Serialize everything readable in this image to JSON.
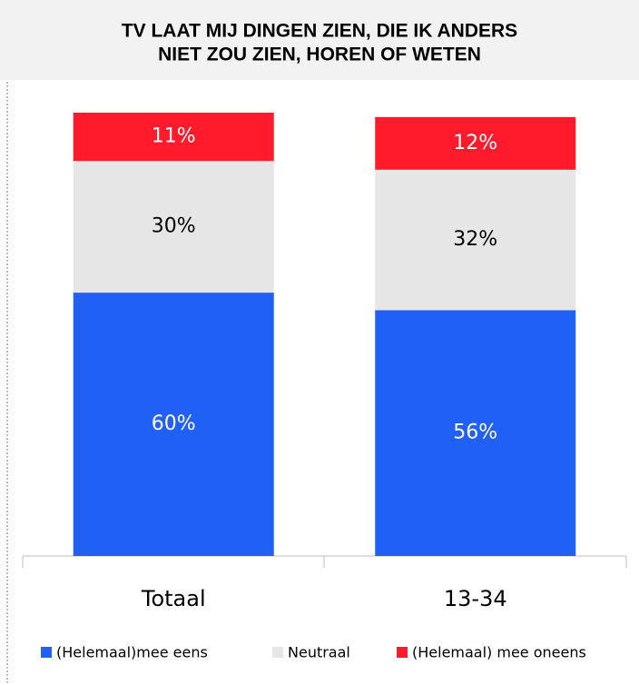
{
  "chart_data": {
    "type": "stacked_bar",
    "title": [
      "TV LAAT MIJ DINGEN ZIEN, DIE IK ANDERS",
      "NIET ZOU ZIEN, HOREN OF WETEN"
    ],
    "categories": [
      "Totaal",
      "13-34"
    ],
    "series": [
      {
        "name": "(Helemaal)mee eens",
        "color": "#2160f4",
        "values": [
          60,
          56
        ],
        "value_labels": [
          "60%",
          "56%"
        ],
        "label_color": "#ffffff"
      },
      {
        "name": "Neutraal",
        "color": "#e6e6e6",
        "values": [
          30,
          32
        ],
        "value_labels": [
          "30%",
          "32%"
        ],
        "label_color": "#000000"
      },
      {
        "name": "(Helemaal) mee oneens",
        "color": "#ff1b2b",
        "values": [
          11,
          12
        ],
        "value_labels": [
          "11%",
          "12%"
        ],
        "label_color": "#ffffff"
      }
    ],
    "ylim": [
      0,
      101
    ]
  }
}
